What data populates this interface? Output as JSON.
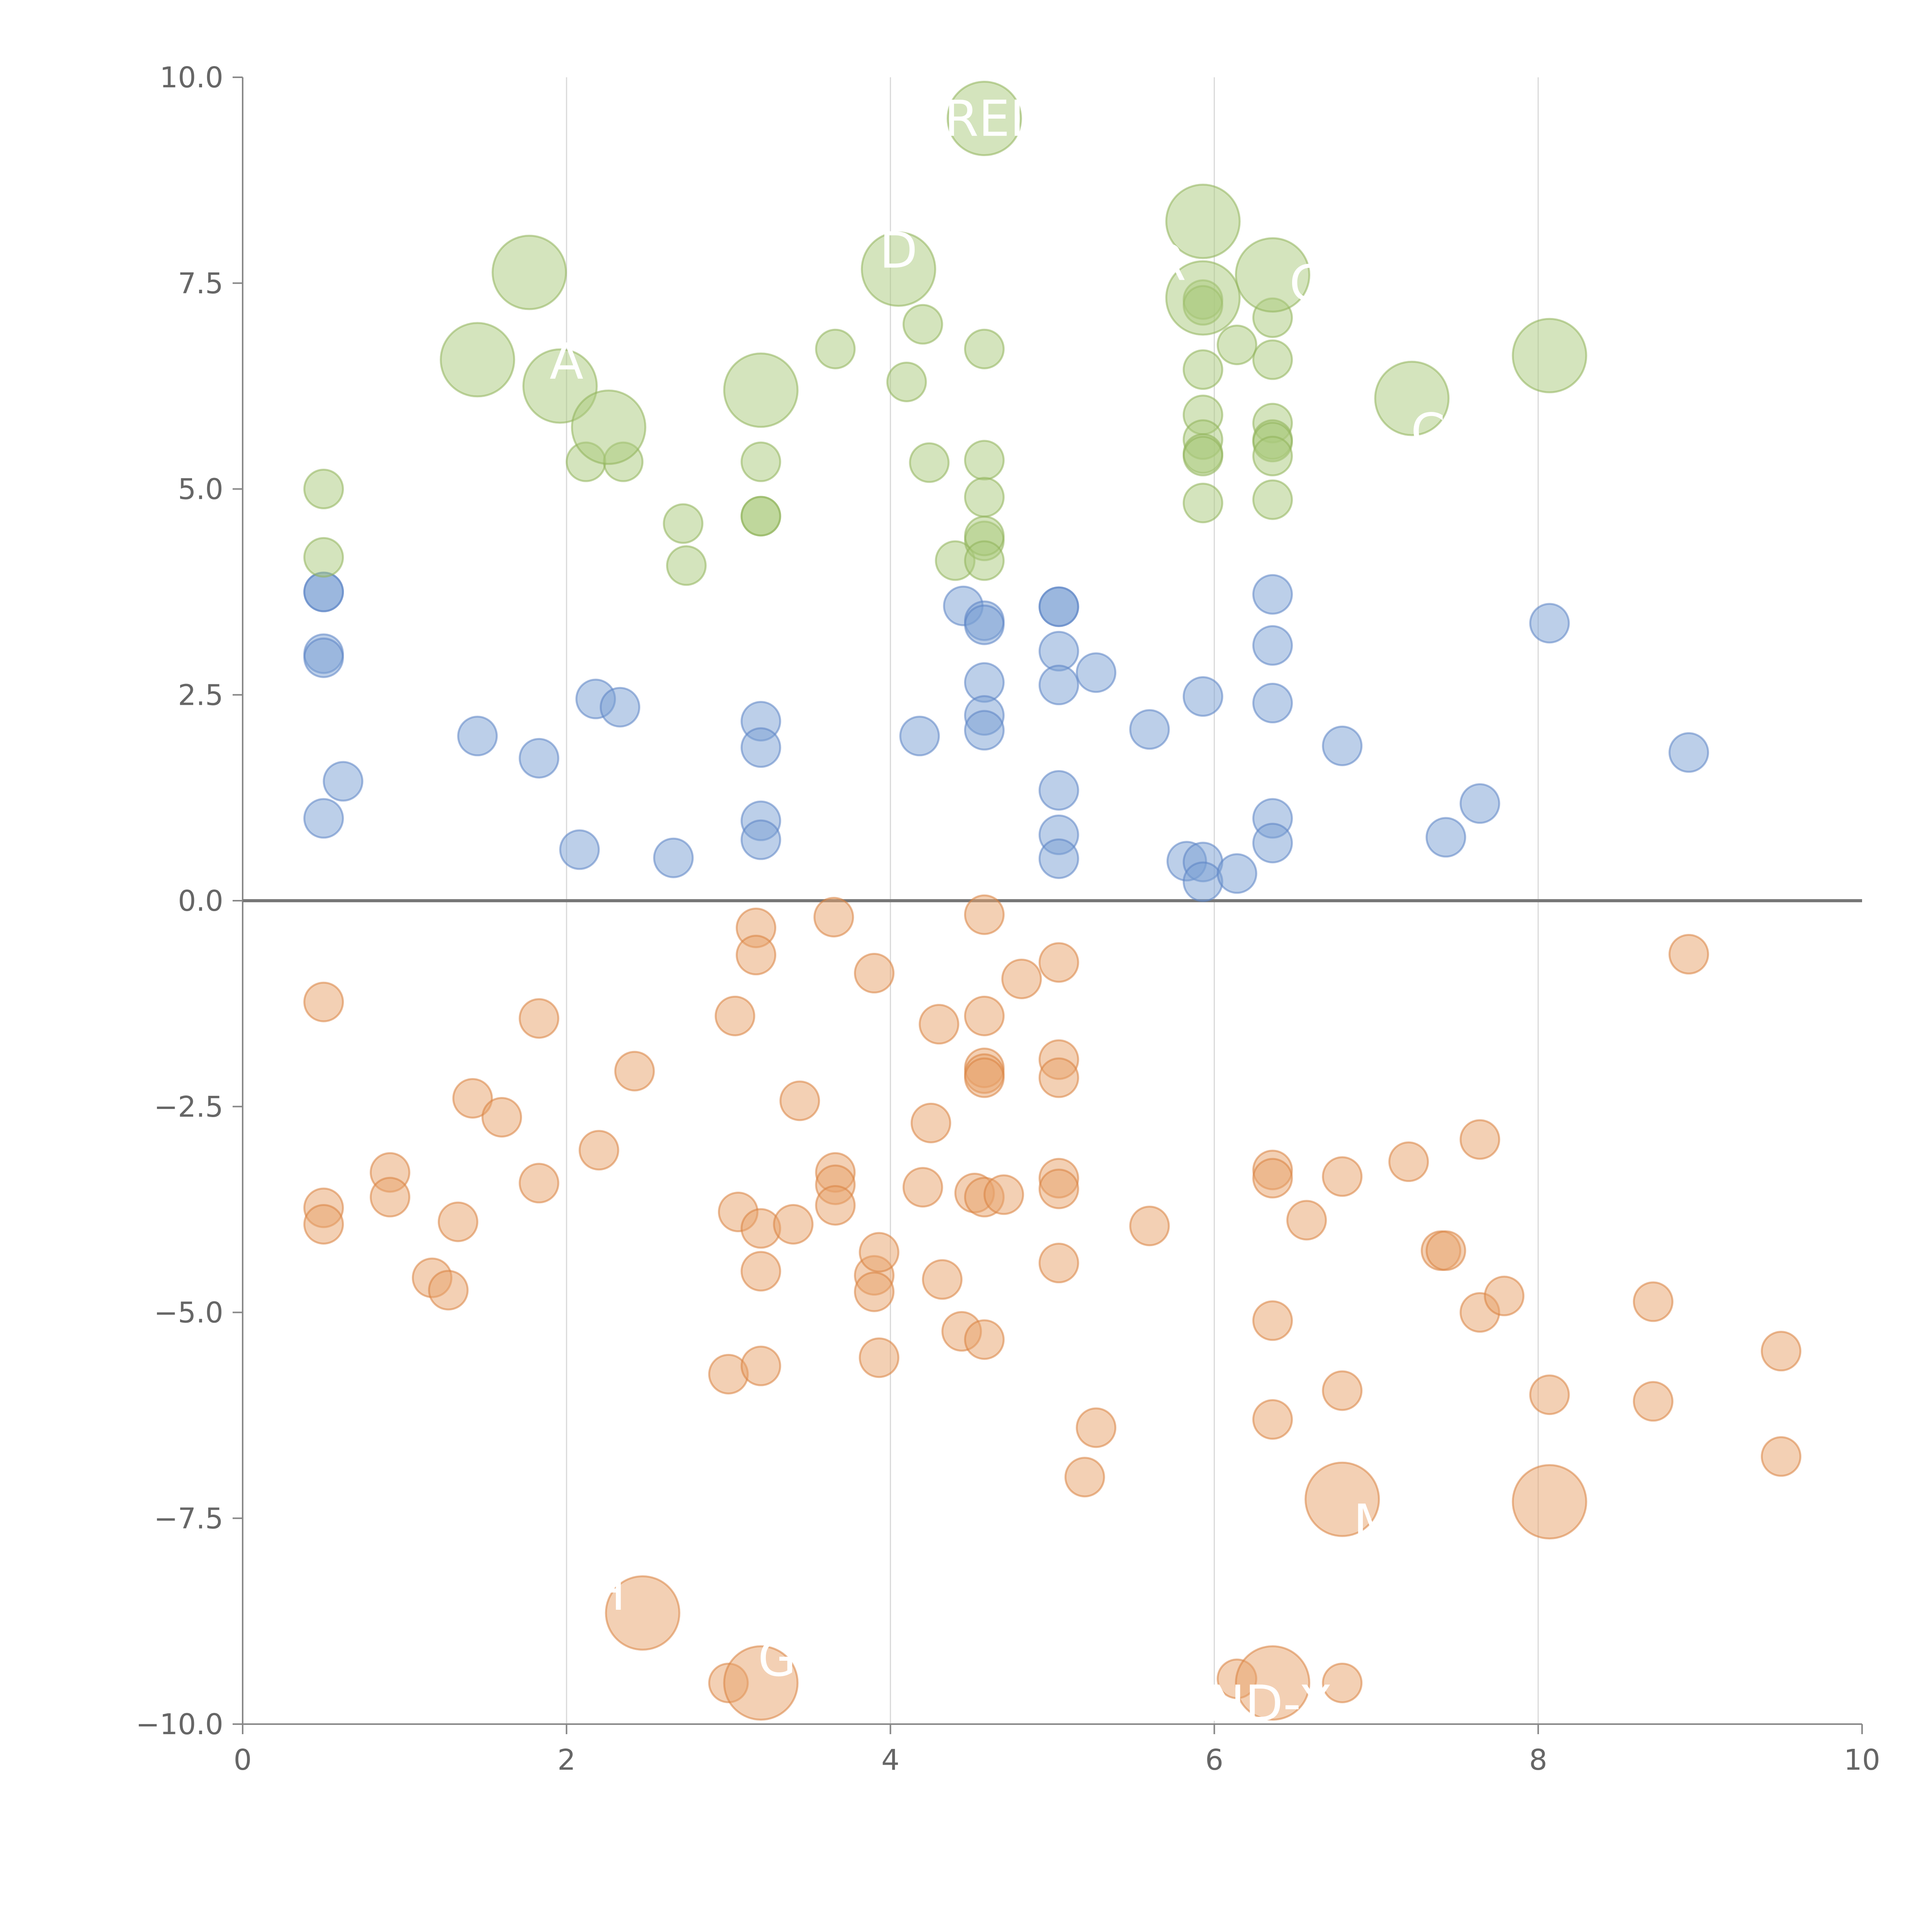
{
  "chart_data": {
    "type": "scatter",
    "title": "",
    "xlabel": "",
    "ylabel": "",
    "xlim": [
      0,
      10
    ],
    "ylim": [
      -10,
      10
    ],
    "x_ticks": [
      "0",
      "2",
      "4",
      "6",
      "8",
      "10"
    ],
    "y_ticks": [
      "−10.0",
      "−7.5",
      "−5.0",
      "−2.5",
      "0.0",
      "2.5",
      "5.0",
      "7.5",
      "10.0"
    ],
    "grid": "vertical lines at x ticks",
    "zero_line": true,
    "legend": "none",
    "colors": {
      "blue": "#7a9fd4",
      "orange": "#e8a26a",
      "green": "#a9c97b"
    },
    "series": [
      {
        "color": "blue",
        "size": "small",
        "points": [
          [
            0.5,
            3.75
          ],
          [
            0.5,
            3.75
          ],
          [
            0.5,
            3.0
          ],
          [
            0.5,
            2.95
          ],
          [
            0.5,
            1.0
          ],
          [
            0.62,
            1.45
          ],
          [
            1.45,
            2.0
          ],
          [
            1.83,
            1.73
          ],
          [
            2.08,
            0.62
          ],
          [
            2.18,
            2.45
          ],
          [
            2.33,
            2.35
          ],
          [
            2.66,
            0.52
          ],
          [
            3.2,
            2.18
          ],
          [
            3.2,
            1.86
          ],
          [
            3.2,
            0.97
          ],
          [
            3.2,
            0.74
          ],
          [
            4.18,
            2.0
          ],
          [
            4.45,
            3.58
          ],
          [
            4.58,
            3.4
          ],
          [
            4.58,
            3.35
          ],
          [
            4.58,
            2.65
          ],
          [
            4.58,
            2.25
          ],
          [
            4.58,
            2.07
          ],
          [
            5.04,
            3.57
          ],
          [
            5.04,
            3.57
          ],
          [
            5.04,
            3.03
          ],
          [
            5.04,
            2.62
          ],
          [
            5.04,
            1.34
          ],
          [
            5.04,
            0.8
          ],
          [
            5.04,
            0.51
          ],
          [
            5.27,
            2.77
          ],
          [
            5.6,
            2.08
          ],
          [
            5.83,
            0.48
          ],
          [
            5.93,
            0.47
          ],
          [
            5.93,
            0.23
          ],
          [
            5.93,
            2.48
          ],
          [
            6.14,
            0.33
          ],
          [
            6.36,
            3.72
          ],
          [
            6.36,
            3.1
          ],
          [
            6.36,
            2.4
          ],
          [
            6.36,
            1.0
          ],
          [
            6.36,
            0.7
          ],
          [
            6.79,
            1.88
          ],
          [
            7.43,
            0.77
          ],
          [
            7.64,
            1.18
          ],
          [
            8.07,
            3.37
          ],
          [
            8.93,
            1.8
          ]
        ]
      },
      {
        "color": "orange",
        "size": "small",
        "points": [
          [
            0.5,
            -1.23
          ],
          [
            0.5,
            -3.73
          ],
          [
            0.5,
            -3.93
          ],
          [
            0.91,
            -3.3
          ],
          [
            0.91,
            -3.6
          ],
          [
            1.17,
            -4.58
          ],
          [
            1.27,
            -4.73
          ],
          [
            1.33,
            -3.9
          ],
          [
            1.42,
            -2.4
          ],
          [
            1.6,
            -2.63
          ],
          [
            1.83,
            -1.43
          ],
          [
            1.83,
            -3.43
          ],
          [
            2.2,
            -3.03
          ],
          [
            2.42,
            -2.07
          ],
          [
            3.0,
            -5.75
          ],
          [
            3.04,
            -1.4
          ],
          [
            3.06,
            -3.78
          ],
          [
            3.17,
            -0.33
          ],
          [
            3.17,
            -0.66
          ],
          [
            3.2,
            -3.98
          ],
          [
            3.2,
            -4.5
          ],
          [
            3.2,
            -5.65
          ],
          [
            3.4,
            -3.93
          ],
          [
            3.44,
            -2.43
          ],
          [
            3.65,
            -0.2
          ],
          [
            3.66,
            -3.3
          ],
          [
            3.66,
            -3.45
          ],
          [
            3.66,
            -3.7
          ],
          [
            3.9,
            -0.88
          ],
          [
            3.9,
            -4.55
          ],
          [
            3.9,
            -4.75
          ],
          [
            3.93,
            -4.27
          ],
          [
            3.93,
            -5.55
          ],
          [
            4.2,
            -3.48
          ],
          [
            4.25,
            -2.7
          ],
          [
            4.3,
            -1.5
          ],
          [
            4.32,
            -4.6
          ],
          [
            4.44,
            -5.23
          ],
          [
            4.52,
            -3.55
          ],
          [
            4.58,
            -3.6
          ],
          [
            4.58,
            -0.17
          ],
          [
            4.58,
            -1.4
          ],
          [
            4.58,
            -2.03
          ],
          [
            4.58,
            -2.1
          ],
          [
            4.58,
            -2.15
          ],
          [
            4.58,
            -5.33
          ],
          [
            4.7,
            -3.57
          ],
          [
            4.81,
            -0.95
          ],
          [
            5.04,
            -0.75
          ],
          [
            5.04,
            -1.93
          ],
          [
            5.04,
            -2.15
          ],
          [
            5.04,
            -3.37
          ],
          [
            5.04,
            -3.5
          ],
          [
            5.04,
            -4.4
          ],
          [
            5.2,
            -7.0
          ],
          [
            5.27,
            -6.4
          ],
          [
            5.6,
            -3.95
          ],
          [
            6.36,
            -3.27
          ],
          [
            6.36,
            -3.37
          ],
          [
            6.36,
            -5.1
          ],
          [
            6.36,
            -6.3
          ],
          [
            6.57,
            -3.88
          ],
          [
            6.79,
            -3.35
          ],
          [
            6.79,
            -5.95
          ],
          [
            7.2,
            -3.17
          ],
          [
            7.4,
            -4.25
          ],
          [
            7.43,
            -4.25
          ],
          [
            7.64,
            -2.9
          ],
          [
            7.64,
            -5.0
          ],
          [
            7.79,
            -4.8
          ],
          [
            8.07,
            -6.0
          ],
          [
            8.71,
            -4.87
          ],
          [
            8.71,
            -6.08
          ],
          [
            8.93,
            -0.65
          ],
          [
            9.5,
            -5.47
          ],
          [
            9.5,
            -6.75
          ],
          [
            3.0,
            -9.5
          ],
          [
            6.14,
            -9.45
          ],
          [
            6.79,
            -9.5
          ]
        ]
      },
      {
        "color": "green",
        "size": "small",
        "points": [
          [
            0.5,
            5.0
          ],
          [
            0.5,
            4.17
          ],
          [
            2.12,
            5.33
          ],
          [
            2.35,
            5.33
          ],
          [
            2.72,
            4.58
          ],
          [
            2.74,
            4.07
          ],
          [
            3.2,
            5.33
          ],
          [
            3.2,
            4.67
          ],
          [
            3.2,
            4.67
          ],
          [
            3.66,
            6.7
          ],
          [
            4.1,
            6.3
          ],
          [
            4.2,
            7.0
          ],
          [
            4.24,
            5.32
          ],
          [
            4.4,
            4.13
          ],
          [
            4.58,
            6.7
          ],
          [
            4.58,
            5.35
          ],
          [
            4.58,
            4.9
          ],
          [
            4.58,
            4.37
          ],
          [
            4.58,
            4.43
          ],
          [
            4.58,
            4.13
          ],
          [
            5.93,
            7.3
          ],
          [
            5.93,
            7.23
          ],
          [
            5.93,
            6.45
          ],
          [
            5.93,
            5.9
          ],
          [
            5.93,
            5.6
          ],
          [
            5.93,
            5.43
          ],
          [
            5.93,
            5.4
          ],
          [
            5.93,
            4.83
          ],
          [
            6.14,
            6.75
          ],
          [
            6.36,
            7.08
          ],
          [
            6.36,
            6.57
          ],
          [
            6.36,
            5.8
          ],
          [
            6.36,
            5.6
          ],
          [
            6.36,
            5.57
          ],
          [
            6.36,
            5.4
          ],
          [
            6.36,
            4.87
          ]
        ]
      },
      {
        "color": "green",
        "size": "large",
        "points": [
          [
            1.45,
            6.57
          ],
          [
            1.77,
            7.63
          ],
          [
            1.96,
            6.25
          ],
          [
            2.26,
            5.75
          ],
          [
            3.2,
            6.2
          ],
          [
            4.05,
            7.67
          ],
          [
            4.58,
            9.5
          ],
          [
            5.93,
            8.25
          ],
          [
            5.93,
            7.32
          ],
          [
            6.36,
            7.6
          ],
          [
            7.22,
            6.1
          ],
          [
            8.07,
            6.62
          ]
        ]
      },
      {
        "color": "orange",
        "size": "large",
        "points": [
          [
            2.47,
            -8.65
          ],
          [
            3.2,
            -9.5
          ],
          [
            6.36,
            -9.5
          ],
          [
            6.79,
            -7.27
          ],
          [
            8.07,
            -7.3
          ]
        ]
      }
    ],
    "bubble_labels": [
      {
        "text": "REI",
        "x": 4.58,
        "y": 9.5
      },
      {
        "text": "D",
        "x": 4.05,
        "y": 7.9
      },
      {
        "text": "R",
        "x": 5.72,
        "y": 7.75
      },
      {
        "text": "C",
        "x": 6.57,
        "y": 7.5
      },
      {
        "text": "A",
        "x": 2.0,
        "y": 6.55
      },
      {
        "text": "C",
        "x": 7.32,
        "y": 5.7
      },
      {
        "text": "M",
        "x": 6.99,
        "y": -7.55
      },
      {
        "text": "H",
        "x": 2.25,
        "y": -8.4
      },
      {
        "text": "G",
        "x": 3.3,
        "y": -9.2
      },
      {
        "text": "IND-X",
        "x": 6.3,
        "y": -9.75
      }
    ]
  }
}
